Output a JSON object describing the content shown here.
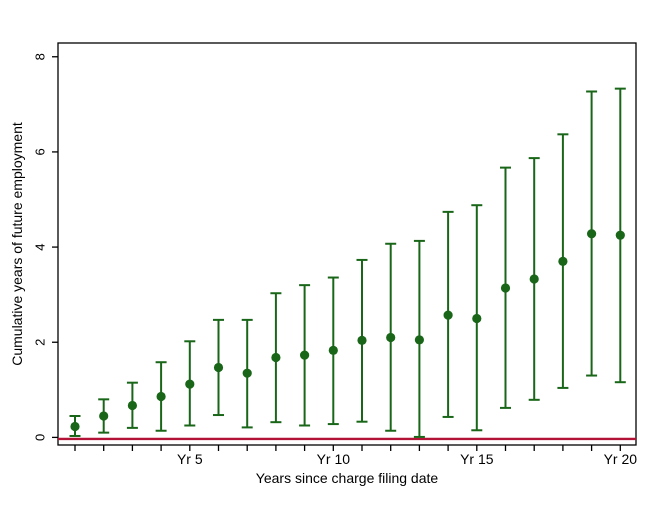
{
  "figure": {
    "background": "#ffffff",
    "axis_color": "#000000",
    "text_color": "#000000",
    "zero_line_color": "#b11236",
    "series_color": "#196619"
  },
  "chart_data": {
    "type": "scatter",
    "subtype": "errorbar",
    "title": "",
    "xlabel": "Years since charge filing date",
    "ylabel": "Cumulative years of future employment",
    "x": [
      1,
      2,
      3,
      4,
      5,
      6,
      7,
      8,
      9,
      10,
      11,
      12,
      13,
      14,
      15,
      16,
      17,
      18,
      19,
      20
    ],
    "series": [
      {
        "name": "point_estimate",
        "values": [
          0.23,
          0.45,
          0.67,
          0.86,
          1.12,
          1.47,
          1.35,
          1.68,
          1.73,
          1.83,
          2.04,
          2.1,
          2.05,
          2.57,
          2.5,
          3.14,
          3.33,
          3.7,
          4.28,
          4.25
        ]
      },
      {
        "name": "ci_lower",
        "values": [
          0.03,
          0.1,
          0.2,
          0.14,
          0.25,
          0.47,
          0.21,
          0.32,
          0.25,
          0.28,
          0.33,
          0.14,
          0.01,
          0.43,
          0.15,
          0.62,
          0.79,
          1.04,
          1.3,
          1.16
        ]
      },
      {
        "name": "ci_upper",
        "values": [
          0.45,
          0.8,
          1.15,
          1.58,
          2.02,
          2.47,
          2.47,
          3.03,
          3.2,
          3.36,
          3.73,
          4.07,
          4.13,
          4.74,
          4.88,
          5.67,
          5.87,
          6.37,
          7.27,
          7.33
        ]
      }
    ],
    "zero_line": 0,
    "xlim": [
      0.4,
      20.55
    ],
    "ylim": [
      -0.16,
      8.29
    ],
    "xtick_positions": [
      5,
      10,
      15,
      20
    ],
    "xtick_labels": [
      "Yr 5",
      "Yr 10",
      "Yr 15",
      "Yr 20"
    ],
    "minor_xtick_positions": [
      1,
      2,
      3,
      4,
      5,
      6,
      7,
      8,
      9,
      10,
      11,
      12,
      13,
      14,
      15,
      16,
      17,
      18,
      19,
      20
    ],
    "ytick_positions": [
      0,
      2,
      4,
      6,
      8
    ],
    "ytick_labels": [
      "0",
      "2",
      "4",
      "6",
      "8"
    ],
    "grid": "off",
    "legend": "none"
  }
}
